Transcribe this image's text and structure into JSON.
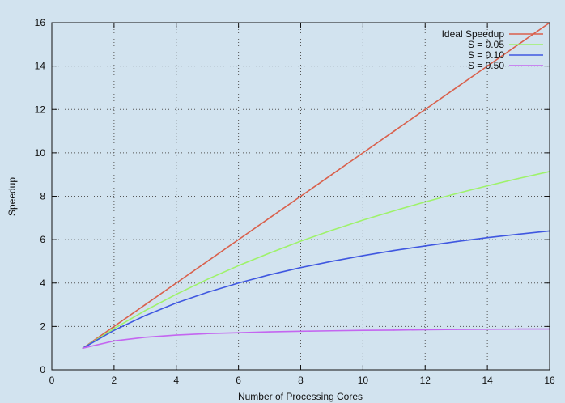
{
  "chart_data": {
    "type": "line",
    "title": "",
    "xlabel": "Number of Processing Cores",
    "ylabel": "Speedup",
    "xlim": [
      0,
      16
    ],
    "ylim": [
      0,
      16
    ],
    "xticks": [
      0,
      2,
      4,
      6,
      8,
      10,
      12,
      14,
      16
    ],
    "yticks": [
      0,
      2,
      4,
      6,
      8,
      10,
      12,
      14,
      16
    ],
    "grid": true,
    "legend_position": "top-right",
    "series": [
      {
        "name": "Ideal Speedup",
        "color": "#d9604c",
        "x": [
          1,
          2,
          3,
          4,
          5,
          6,
          7,
          8,
          9,
          10,
          11,
          12,
          13,
          14,
          15,
          16
        ],
        "y": [
          1,
          2,
          3,
          4,
          5,
          6,
          7,
          8,
          9,
          10,
          11,
          12,
          13,
          14,
          15,
          16
        ]
      },
      {
        "name": "S = 0.05",
        "color": "#9ef26a",
        "x": [
          1,
          2,
          3,
          4,
          5,
          6,
          7,
          8,
          9,
          10,
          11,
          12,
          13,
          14,
          15,
          16
        ],
        "y": [
          1.0,
          1.9,
          2.73,
          3.48,
          4.17,
          4.8,
          5.38,
          5.93,
          6.43,
          6.9,
          7.33,
          7.74,
          8.12,
          8.48,
          8.82,
          9.14
        ]
      },
      {
        "name": "S = 0.10",
        "color": "#3f57e0",
        "x": [
          1,
          2,
          3,
          4,
          5,
          6,
          7,
          8,
          9,
          10,
          11,
          12,
          13,
          14,
          15,
          16
        ],
        "y": [
          1.0,
          1.82,
          2.5,
          3.08,
          3.57,
          4.0,
          4.38,
          4.71,
          5.0,
          5.26,
          5.5,
          5.71,
          5.91,
          6.09,
          6.25,
          6.4
        ]
      },
      {
        "name": "S = 0.50",
        "color": "#c466f0",
        "x": [
          1,
          2,
          3,
          4,
          5,
          6,
          7,
          8,
          9,
          10,
          11,
          12,
          13,
          14,
          15,
          16
        ],
        "y": [
          1.0,
          1.33,
          1.5,
          1.6,
          1.67,
          1.71,
          1.75,
          1.78,
          1.8,
          1.82,
          1.83,
          1.85,
          1.86,
          1.87,
          1.88,
          1.88
        ]
      }
    ]
  }
}
